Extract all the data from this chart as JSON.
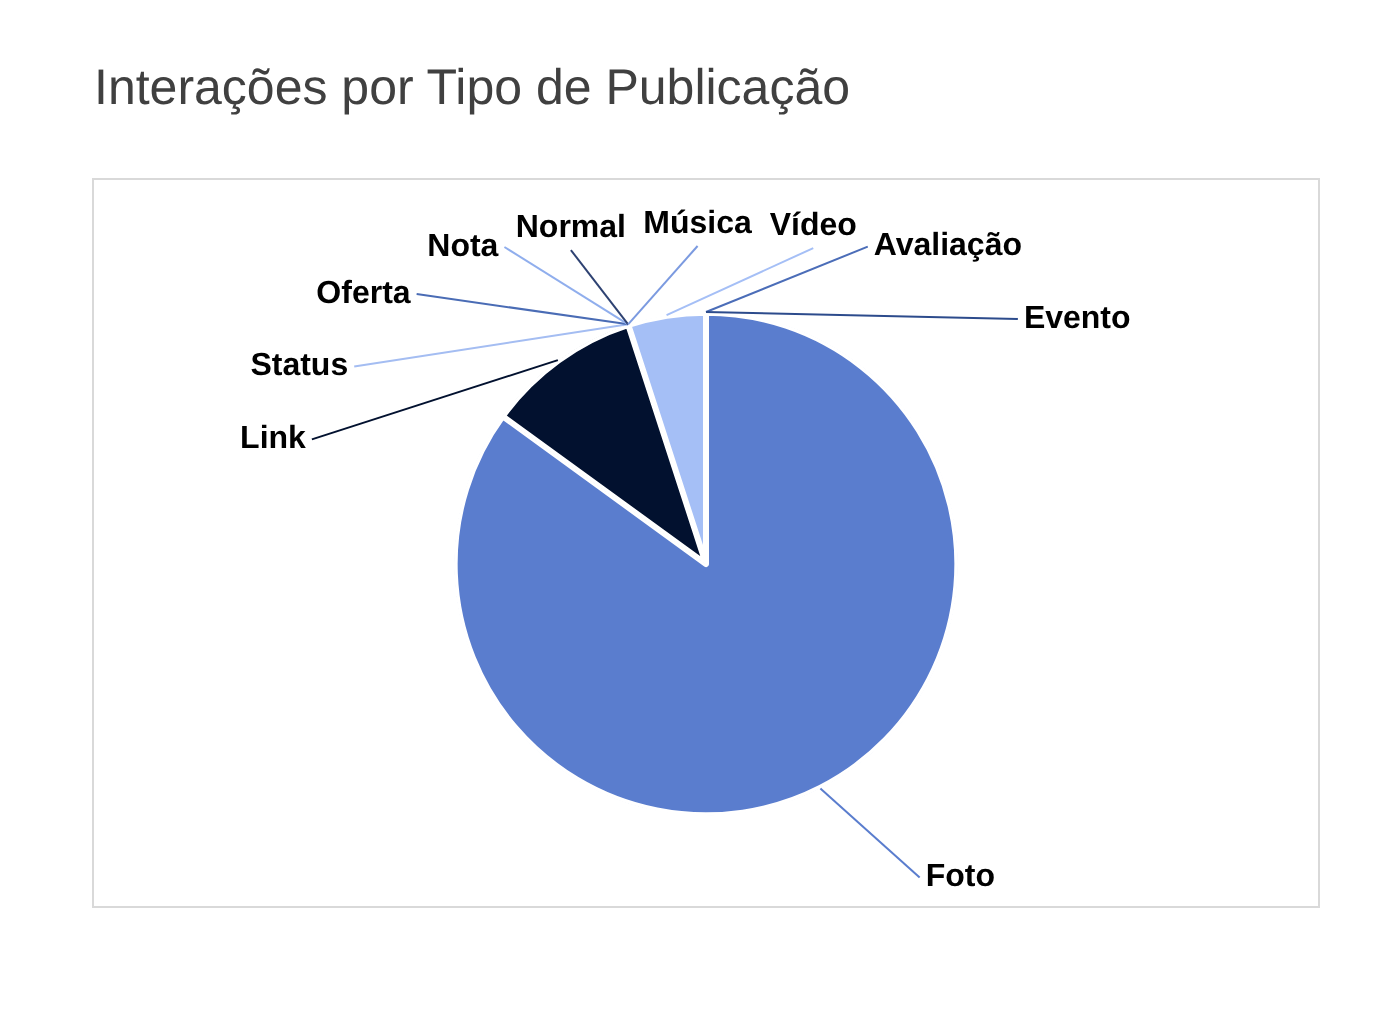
{
  "chart_data": {
    "type": "pie",
    "title": "Interações por Tipo de Publicação",
    "categories": [
      "Foto",
      "Link",
      "Status",
      "Oferta",
      "Nota",
      "Normal",
      "Música",
      "Vídeo",
      "Avaliação",
      "Evento"
    ],
    "values": [
      85,
      10,
      0,
      0,
      0,
      0,
      0,
      5,
      0,
      0
    ],
    "colors": [
      "#5a7dce",
      "#02112f",
      "#a4bdf2",
      "#4a6cb5",
      "#90aeed",
      "#2e4272",
      "#7b9ae0",
      "#a5bff6",
      "#4b6db8",
      "#2c4b8c"
    ]
  }
}
